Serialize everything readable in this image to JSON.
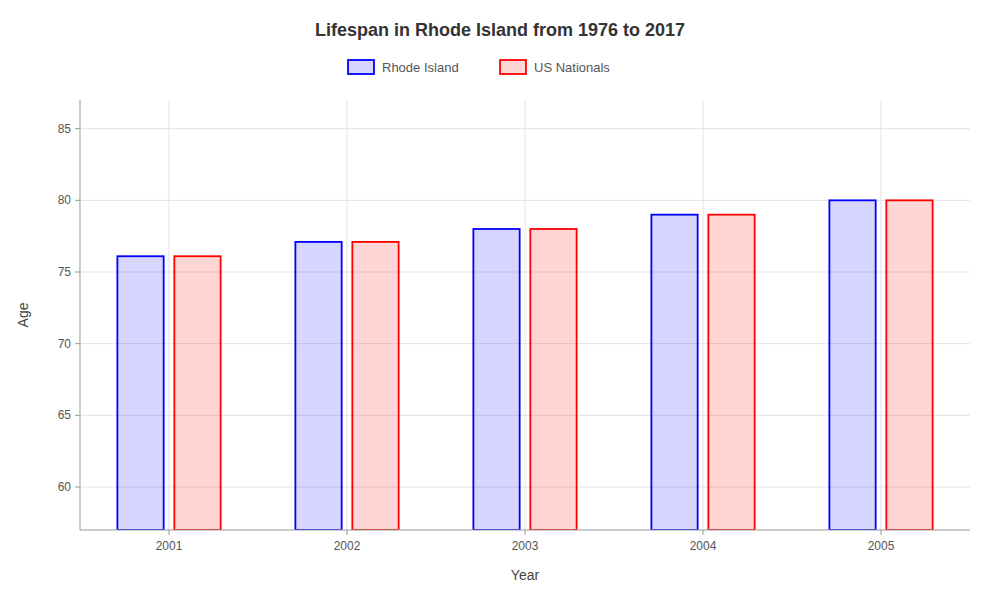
{
  "chart_data": {
    "type": "bar",
    "title": "Lifespan in Rhode Island from 1976 to 2017",
    "x_label": "Year",
    "y_label": "Age",
    "categories": [
      "2001",
      "2002",
      "2003",
      "2004",
      "2005"
    ],
    "series": [
      {
        "name": "Rhode Island",
        "color": "#0000ff",
        "values": [
          76.1,
          77.1,
          78.0,
          79.0,
          80.0
        ]
      },
      {
        "name": "US Nationals",
        "color": "#ff0000",
        "values": [
          76.1,
          77.1,
          78.0,
          79.0,
          80.0
        ]
      }
    ],
    "ylim": [
      57,
      87
    ],
    "yticks": [
      60,
      65,
      70,
      75,
      80,
      85
    ],
    "grid": true,
    "legend": "top"
  }
}
